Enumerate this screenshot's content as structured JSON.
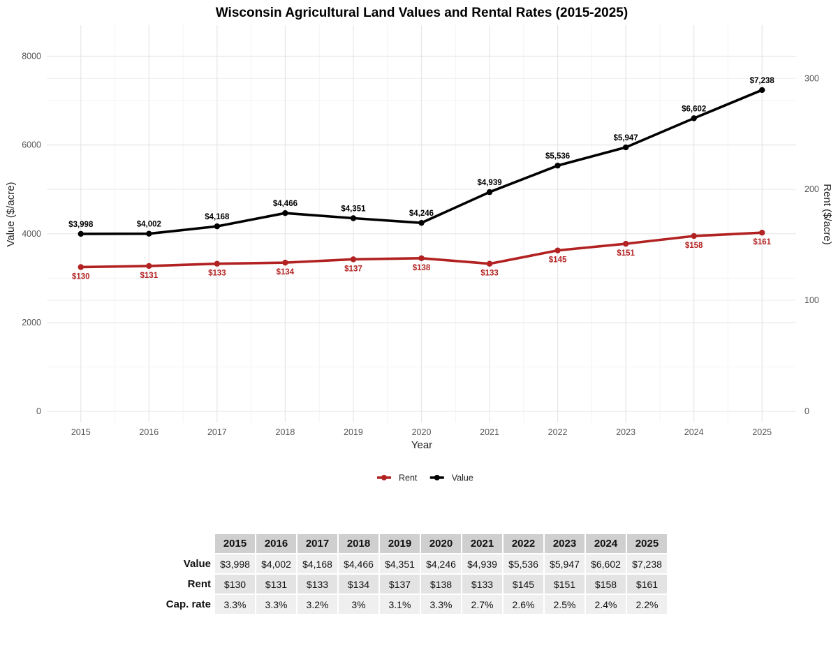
{
  "chart_data": {
    "type": "line",
    "title": "Wisconsin Agricultural Land Values and Rental Rates (2015-2025)",
    "xlabel": "Year",
    "ylabel": "Value ($/acre)",
    "y2label": "Rent ($/acre)",
    "x": [
      2015,
      2016,
      2017,
      2018,
      2019,
      2020,
      2021,
      2022,
      2023,
      2024,
      2025
    ],
    "x_tick_labels": [
      "2015",
      "2016",
      "2017",
      "2018",
      "2019",
      "2020",
      "2021",
      "2022",
      "2023",
      "2024",
      "2025"
    ],
    "ylim": [
      -250,
      8700
    ],
    "y_ticks": [
      0,
      2000,
      4000,
      6000,
      8000
    ],
    "y2_ticks": [
      0,
      100,
      200,
      300
    ],
    "y2_scale_factor": 25,
    "grid": true,
    "legend_position": "bottom",
    "series": [
      {
        "name": "Value",
        "axis": "left",
        "color": "#000000",
        "values": [
          3998,
          4002,
          4168,
          4466,
          4351,
          4246,
          4939,
          5536,
          5947,
          6602,
          7238
        ],
        "labels": [
          "$3,998",
          "$4,002",
          "$4,168",
          "$4,466",
          "$4,351",
          "$4,246",
          "$4,939",
          "$5,536",
          "$5,947",
          "$6,602",
          "$7,238"
        ]
      },
      {
        "name": "Rent",
        "axis": "right",
        "color": "#b22222",
        "values": [
          130,
          131,
          133,
          134,
          137,
          138,
          133,
          145,
          151,
          158,
          161
        ],
        "labels": [
          "$130",
          "$131",
          "$133",
          "$134",
          "$137",
          "$138",
          "$133",
          "$145",
          "$151",
          "$158",
          "$161"
        ]
      }
    ],
    "legend": [
      {
        "name": "Rent",
        "color": "#b22222"
      },
      {
        "name": "Value",
        "color": "#000000"
      }
    ]
  },
  "table": {
    "columns": [
      "2015",
      "2016",
      "2017",
      "2018",
      "2019",
      "2020",
      "2021",
      "2022",
      "2023",
      "2024",
      "2025"
    ],
    "rows": [
      {
        "label": "Value",
        "cells": [
          "$3,998",
          "$4,002",
          "$4,168",
          "$4,466",
          "$4,351",
          "$4,246",
          "$4,939",
          "$5,536",
          "$5,947",
          "$6,602",
          "$7,238"
        ]
      },
      {
        "label": "Rent",
        "cells": [
          "$130",
          "$131",
          "$133",
          "$134",
          "$137",
          "$138",
          "$133",
          "$145",
          "$151",
          "$158",
          "$161"
        ]
      },
      {
        "label": "Cap. rate",
        "cells": [
          "3.3%",
          "3.3%",
          "3.2%",
          "3%",
          "3.1%",
          "3.3%",
          "2.7%",
          "2.6%",
          "2.5%",
          "2.4%",
          "2.2%"
        ]
      }
    ]
  }
}
